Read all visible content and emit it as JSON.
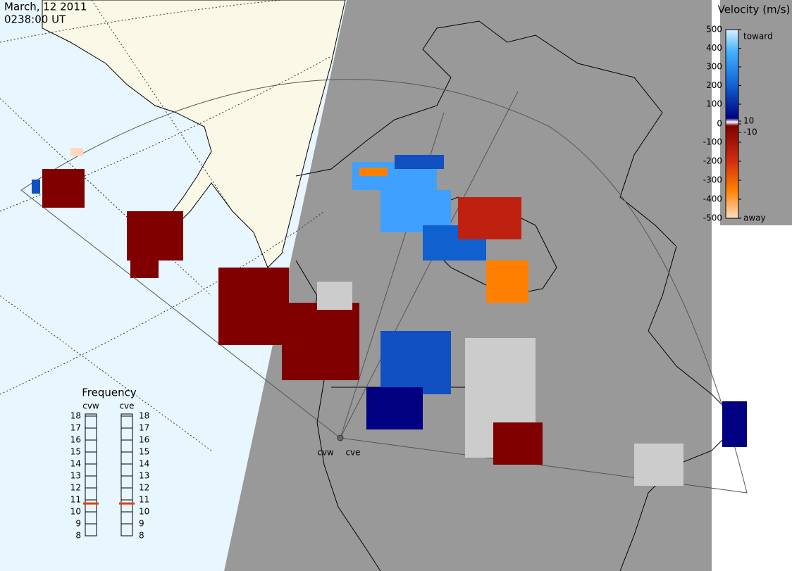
{
  "header": {
    "date": "March, 12 2011",
    "time": "0238:00 UT"
  },
  "colorbar": {
    "title": "Velocity (m/s)",
    "ticks": [
      500,
      400,
      300,
      200,
      100,
      10,
      0,
      -10,
      -100,
      -200,
      -300,
      -400,
      -500
    ],
    "toward_label": "toward",
    "away_label": "away"
  },
  "frequency": {
    "title": "Frequency",
    "scale": [
      8,
      9,
      10,
      11,
      12,
      13,
      14,
      15,
      16,
      17,
      18
    ],
    "radars": [
      {
        "name": "cvw",
        "value": 10.7
      },
      {
        "name": "cve",
        "value": 10.7
      }
    ]
  },
  "stations": [
    "cvw",
    "cve"
  ]
}
